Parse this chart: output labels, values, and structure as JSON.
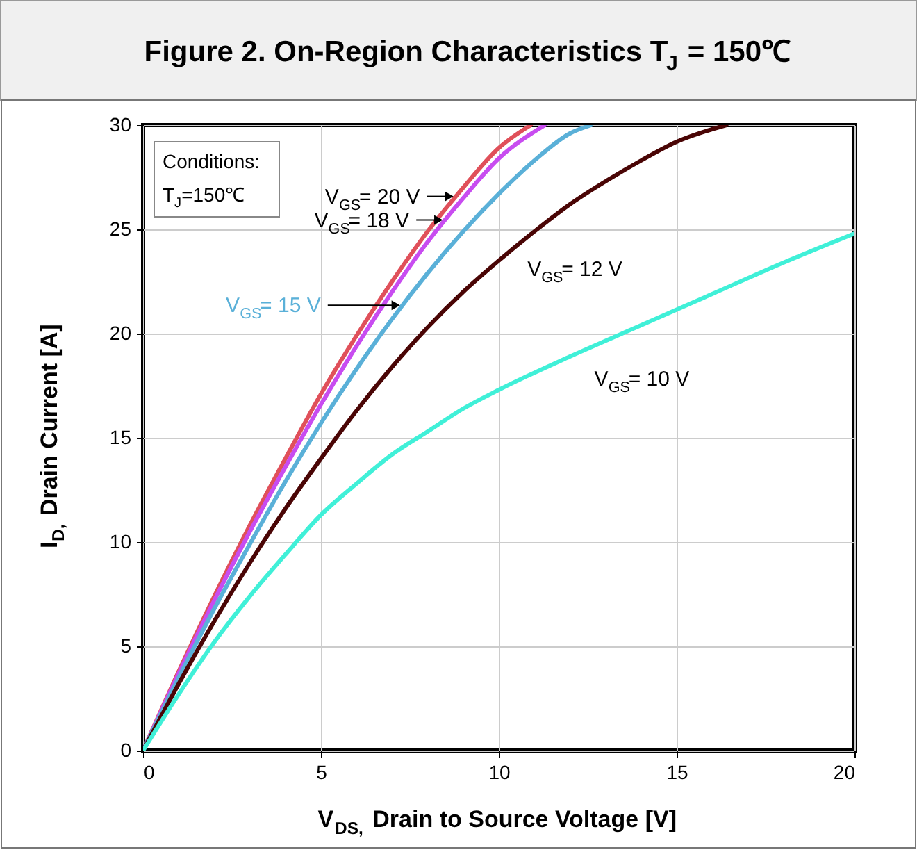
{
  "chart_data": {
    "type": "line",
    "title": "Figure 2. On-Region Characteristics T$_{J}$ = 150℃",
    "xlabel": "V$_{DS,}$ Drain to Source Voltage [V]",
    "ylabel": "I$_{D,}$ Drain Current [A]",
    "xlim": [
      0,
      20
    ],
    "xticks": [
      0,
      5,
      10,
      15,
      20
    ],
    "ylim": [
      0,
      30
    ],
    "yticks": [
      0,
      5,
      10,
      15,
      20,
      25,
      30
    ],
    "grid": true,
    "legend": false,
    "line_style": "solid",
    "marker": "none",
    "annotations": [
      "Conditions:",
      "T$_{J}$=150℃"
    ],
    "series": [
      {
        "name": "V$_{GS}$= 20 V",
        "color": "#e0505a",
        "x": [
          0,
          1,
          2,
          3,
          4,
          5,
          6,
          7,
          8,
          9,
          10,
          10.9
        ],
        "values": [
          0,
          3.8,
          7.4,
          10.8,
          14.0,
          17.1,
          19.9,
          22.5,
          24.9,
          27.0,
          28.9,
          30
        ]
      },
      {
        "name": "V$_{GS}$= 18 V",
        "color": "#c84cf0",
        "x": [
          0,
          1,
          2,
          3,
          4,
          5,
          6,
          7,
          8,
          9,
          10,
          11.3
        ],
        "values": [
          0,
          3.7,
          7.2,
          10.5,
          13.6,
          16.6,
          19.4,
          22.0,
          24.4,
          26.5,
          28.4,
          30
        ]
      },
      {
        "name": "V$_{GS}$= 15 V",
        "color": "#5ab0d8",
        "x": [
          0,
          1,
          2,
          3,
          4,
          5,
          6,
          7,
          8,
          9,
          10,
          11,
          12,
          12.6
        ],
        "values": [
          0,
          3.5,
          6.8,
          9.9,
          12.9,
          15.7,
          18.3,
          20.7,
          22.9,
          24.9,
          26.7,
          28.3,
          29.6,
          30
        ]
      },
      {
        "name": "V$_{GS}$= 12 V",
        "color": "#4a0505",
        "x": [
          0,
          1,
          2,
          3,
          4,
          5,
          6,
          7,
          8,
          9,
          10,
          11,
          12,
          13,
          14,
          15,
          16.4
        ],
        "values": [
          0,
          3.2,
          6.2,
          9.0,
          11.6,
          14.0,
          16.3,
          18.4,
          20.3,
          22.0,
          23.5,
          24.9,
          26.2,
          27.3,
          28.3,
          29.2,
          30
        ]
      },
      {
        "name": "V$_{GS}$= 10 V",
        "color": "#40f0d8",
        "x": [
          0,
          1,
          2,
          3,
          4,
          5,
          6,
          7,
          8,
          9,
          10,
          12,
          14,
          16,
          18,
          20
        ],
        "values": [
          0,
          2.7,
          5.2,
          7.4,
          9.4,
          11.3,
          12.8,
          14.2,
          15.3,
          16.4,
          17.3,
          18.9,
          20.4,
          21.9,
          23.4,
          24.8
        ]
      }
    ]
  }
}
